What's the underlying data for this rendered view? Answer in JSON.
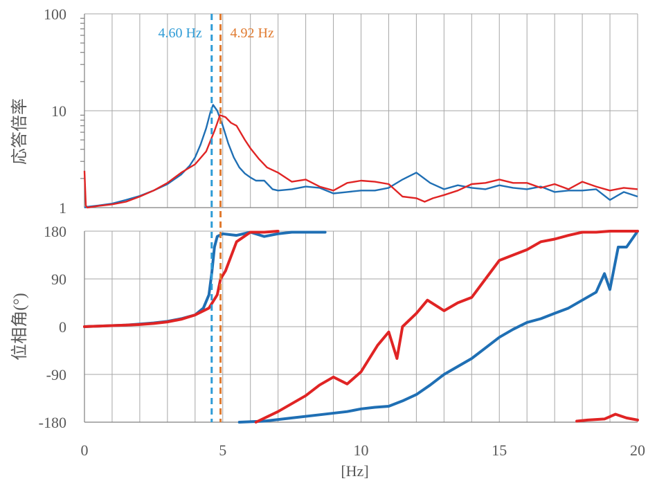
{
  "chart_data": [
    {
      "type": "line",
      "ylabel": "応答倍率",
      "yscale": "log",
      "ylim": [
        1,
        100
      ],
      "xlim": [
        0,
        20
      ],
      "yticks": [
        "1",
        "10",
        "100"
      ],
      "annotations": [
        {
          "text": "4.60 Hz",
          "x": 4.6,
          "color": "#2e9bd6"
        },
        {
          "text": "4.92 Hz",
          "x": 4.92,
          "color": "#e07a2f"
        }
      ],
      "series": [
        {
          "color": "#1f6fb4",
          "x": [
            0,
            0.1,
            0.5,
            1,
            1.5,
            2,
            2.5,
            3,
            3.5,
            3.8,
            4,
            4.2,
            4.4,
            4.55,
            4.65,
            4.8,
            5,
            5.2,
            5.4,
            5.6,
            5.8,
            6,
            6.2,
            6.5,
            6.8,
            7,
            7.5,
            8,
            8.5,
            9,
            9.5,
            10,
            10.5,
            11,
            11.5,
            12,
            12.5,
            13,
            13.5,
            14,
            14.5,
            15,
            15.5,
            16,
            16.5,
            17,
            17.5,
            18,
            18.5,
            19,
            19.5,
            20
          ],
          "y": [
            1.0,
            1.02,
            1.05,
            1.1,
            1.2,
            1.32,
            1.5,
            1.75,
            2.2,
            2.7,
            3.3,
            4.5,
            6.6,
            9.6,
            11.5,
            10.0,
            7.0,
            4.6,
            3.3,
            2.6,
            2.25,
            2.05,
            1.9,
            1.9,
            1.55,
            1.5,
            1.55,
            1.65,
            1.6,
            1.4,
            1.45,
            1.5,
            1.5,
            1.6,
            1.95,
            2.3,
            1.8,
            1.55,
            1.7,
            1.6,
            1.55,
            1.7,
            1.6,
            1.55,
            1.65,
            1.45,
            1.5,
            1.5,
            1.55,
            1.2,
            1.45,
            1.3
          ]
        },
        {
          "color": "#e02424",
          "x": [
            0,
            0.05,
            0.1,
            0.5,
            1,
            1.5,
            2,
            2.5,
            3,
            3.5,
            4,
            4.4,
            4.7,
            4.9,
            5.1,
            5.3,
            5.5,
            5.8,
            6,
            6.3,
            6.6,
            7,
            7.5,
            8,
            8.5,
            9,
            9.5,
            10,
            10.5,
            11,
            11.5,
            12,
            12.3,
            12.6,
            13,
            13.5,
            14,
            14.5,
            15,
            15.5,
            16,
            16.5,
            17,
            17.5,
            18,
            18.5,
            19,
            19.5,
            20
          ],
          "y": [
            2.4,
            1.05,
            1.0,
            1.04,
            1.08,
            1.15,
            1.3,
            1.5,
            1.8,
            2.3,
            2.8,
            3.8,
            6.2,
            9.0,
            8.6,
            7.5,
            7.0,
            5.0,
            4.1,
            3.2,
            2.6,
            2.3,
            1.85,
            1.95,
            1.65,
            1.5,
            1.8,
            1.9,
            1.85,
            1.75,
            1.3,
            1.25,
            1.15,
            1.25,
            1.35,
            1.5,
            1.75,
            1.8,
            1.95,
            1.8,
            1.8,
            1.6,
            1.75,
            1.55,
            1.85,
            1.65,
            1.5,
            1.6,
            1.55
          ]
        }
      ]
    },
    {
      "type": "scatter",
      "ylabel": "位相角(°)",
      "xlabel": "[Hz]",
      "xlim": [
        0,
        20
      ],
      "ylim": [
        -180,
        180
      ],
      "xticks": [
        "0",
        "5",
        "10",
        "15",
        "20"
      ],
      "yticks": [
        "180",
        "90",
        "0",
        "-90",
        "-180"
      ],
      "series": [
        {
          "color": "#1f6fb4",
          "x": [
            0,
            0.5,
            1,
            1.5,
            2,
            2.5,
            3,
            3.5,
            4,
            4.3,
            4.5,
            4.6,
            4.7,
            4.8,
            5,
            5.5,
            6,
            6.5,
            7,
            7.5,
            8.7
          ],
          "y": [
            0,
            1,
            2,
            3,
            5,
            7,
            10,
            15,
            22,
            35,
            60,
            100,
            150,
            170,
            175,
            172,
            178,
            170,
            175,
            178,
            178
          ]
        },
        {
          "color": "#1f6fb4",
          "x": [
            5.6,
            6.5,
            7.5,
            8.5,
            9.5,
            10,
            10.5,
            11,
            11.5,
            12,
            12.5,
            13,
            13.5,
            14,
            14.5,
            15,
            15.5,
            16,
            16.5,
            17,
            17.5,
            18,
            18.5,
            18.8,
            19,
            19.3,
            19.6,
            20
          ],
          "y": [
            -180,
            -178,
            -172,
            -166,
            -160,
            -155,
            -152,
            -150,
            -140,
            -128,
            -110,
            -90,
            -75,
            -60,
            -40,
            -20,
            -5,
            8,
            15,
            25,
            35,
            50,
            65,
            100,
            70,
            150,
            150,
            180
          ]
        },
        {
          "color": "#e02424",
          "x": [
            0,
            0.5,
            1,
            1.5,
            2,
            2.5,
            3,
            3.5,
            4,
            4.5,
            4.8,
            4.92,
            5.1,
            5.5,
            6,
            6.5,
            7
          ],
          "y": [
            0,
            1,
            2,
            3,
            4,
            6,
            9,
            14,
            22,
            35,
            60,
            90,
            105,
            160,
            178,
            178,
            180
          ]
        },
        {
          "color": "#e02424",
          "x": [
            6.2,
            6.6,
            7,
            7.5,
            8,
            8.5,
            9,
            9.5,
            10,
            10.3,
            10.6,
            11,
            11.3,
            11.5,
            12,
            12.4,
            13,
            13.5,
            14,
            14.5,
            15,
            15.5,
            16,
            16.5,
            17,
            17.5,
            18,
            18.5,
            19,
            20
          ],
          "y": [
            -180,
            -170,
            -160,
            -145,
            -130,
            -110,
            -95,
            -108,
            -85,
            -60,
            -35,
            -10,
            -60,
            0,
            25,
            50,
            30,
            45,
            55,
            90,
            125,
            135,
            145,
            160,
            165,
            172,
            178,
            178,
            180,
            180
          ]
        },
        {
          "color": "#e02424",
          "x": [
            17.8,
            18.2,
            18.8,
            19.2,
            19.6,
            20
          ],
          "y": [
            -178,
            -176,
            -174,
            -165,
            -172,
            -176
          ]
        }
      ]
    }
  ]
}
